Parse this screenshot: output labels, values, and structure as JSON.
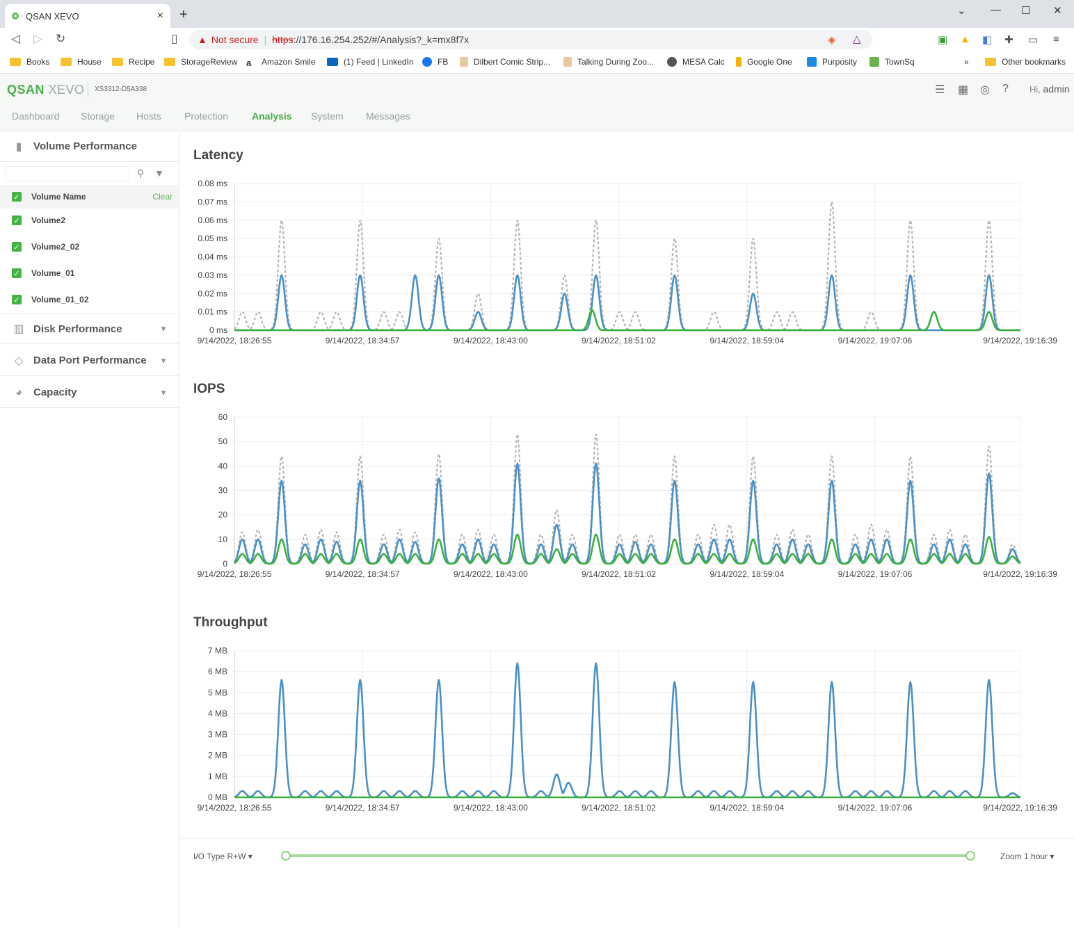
{
  "browser": {
    "tab_title": "QSAN XEVO",
    "tab_close": "×",
    "new_tab": "+",
    "not_secure": "Not secure",
    "url_protocol": "https",
    "url_rest": "://176.16.254.252/#/Analysis?_k=mx8f7x",
    "bookmarks": [
      {
        "label": "Books",
        "icon": "folder-icon"
      },
      {
        "label": "House",
        "icon": "folder-icon"
      },
      {
        "label": "Recipe",
        "icon": "folder-icon"
      },
      {
        "label": "StorageReview",
        "icon": "folder-icon"
      },
      {
        "label": "Amazon Smile",
        "icon": "amazon-icon"
      },
      {
        "label": "(1) Feed | LinkedIn",
        "icon": "linkedin-icon"
      },
      {
        "label": "FB",
        "icon": "facebook-icon"
      },
      {
        "label": "Dilbert Comic Strip...",
        "icon": "dilbert-icon"
      },
      {
        "label": "Talking During Zoo...",
        "icon": "dilbert-icon"
      },
      {
        "label": "MESA Calc",
        "icon": "globe-icon"
      },
      {
        "label": "Google One",
        "icon": "google-one-icon"
      },
      {
        "label": "Purposity",
        "icon": "purposity-icon"
      },
      {
        "label": "TownSq",
        "icon": "townsq-icon"
      }
    ],
    "more_bookmarks": "»",
    "other_bookmarks": "Other bookmarks"
  },
  "app": {
    "logo_main": "QSAN",
    "logo_sub": "XEVO",
    "model": "XS3312-D5A338",
    "greeting": "Hi,",
    "user": "admin",
    "nav": [
      "Dashboard",
      "Storage",
      "Hosts",
      "Protection",
      "Analysis",
      "System",
      "Messages"
    ],
    "active_nav": "Analysis"
  },
  "sidebar": {
    "volume_performance": "Volume Performance",
    "column_header": "Volume Name",
    "clear": "Clear",
    "volumes": [
      "Volume2",
      "Volume2_02",
      "Volume_01",
      "Volume_01_02"
    ],
    "sections": [
      "Disk Performance",
      "Data Port Performance",
      "Capacity"
    ]
  },
  "charts": {
    "latency_title": "Latency",
    "iops_title": "IOPS",
    "throughput_title": "Throughput",
    "x_ticks": [
      "9/14/2022, 18:26:55",
      "9/14/2022, 18:34:57",
      "9/14/2022, 18:43:00",
      "9/14/2022, 18:51:02",
      "9/14/2022, 18:59:04",
      "9/14/2022, 19:07:06",
      "9/14/2022, 19:16:39"
    ]
  },
  "colors": {
    "blue": "#4a90c8",
    "green": "#3cb03c",
    "gray": "#b5b5b5",
    "accent": "#4cae4c"
  },
  "chart_data": [
    {
      "type": "line",
      "title": "Latency",
      "y_ticks": [
        "0 ms",
        "0.01 ms",
        "0.02 ms",
        "0.03 ms",
        "0.04 ms",
        "0.05 ms",
        "0.06 ms",
        "0.07 ms",
        "0.08 ms"
      ],
      "ylim": [
        0,
        0.08
      ],
      "x_ticks": [
        "9/14/2022, 18:26:55",
        "9/14/2022, 18:34:57",
        "9/14/2022, 18:43:00",
        "9/14/2022, 18:51:02",
        "9/14/2022, 18:59:04",
        "9/14/2022, 19:07:06",
        "9/14/2022, 19:16:39"
      ],
      "grid": true,
      "series": [
        {
          "style": "dashed-gray",
          "peaks": [
            [
              0.01,
              0.01
            ],
            [
              0.03,
              0.01
            ],
            [
              0.06,
              0.06
            ],
            [
              0.11,
              0.01
            ],
            [
              0.13,
              0.01
            ],
            [
              0.16,
              0.06
            ],
            [
              0.19,
              0.01
            ],
            [
              0.21,
              0.01
            ],
            [
              0.23,
              0.03
            ],
            [
              0.26,
              0.05
            ],
            [
              0.31,
              0.02
            ],
            [
              0.36,
              0.06
            ],
            [
              0.42,
              0.03
            ],
            [
              0.46,
              0.06
            ],
            [
              0.49,
              0.01
            ],
            [
              0.51,
              0.01
            ],
            [
              0.56,
              0.05
            ],
            [
              0.61,
              0.01
            ],
            [
              0.66,
              0.05
            ],
            [
              0.69,
              0.01
            ],
            [
              0.71,
              0.01
            ],
            [
              0.76,
              0.07
            ],
            [
              0.81,
              0.01
            ],
            [
              0.86,
              0.06
            ],
            [
              0.89,
              0.01
            ],
            [
              0.96,
              0.06
            ]
          ]
        },
        {
          "style": "solid-blue",
          "peaks": [
            [
              0.06,
              0.03
            ],
            [
              0.16,
              0.03
            ],
            [
              0.23,
              0.03
            ],
            [
              0.26,
              0.03
            ],
            [
              0.31,
              0.01
            ],
            [
              0.36,
              0.03
            ],
            [
              0.42,
              0.02
            ],
            [
              0.46,
              0.03
            ],
            [
              0.56,
              0.03
            ],
            [
              0.66,
              0.02
            ],
            [
              0.76,
              0.03
            ],
            [
              0.86,
              0.03
            ],
            [
              0.96,
              0.03
            ]
          ]
        },
        {
          "style": "solid-green",
          "peaks": [
            [
              0.455,
              0.011
            ],
            [
              0.89,
              0.01
            ],
            [
              0.96,
              0.01
            ]
          ]
        }
      ]
    },
    {
      "type": "line",
      "title": "IOPS",
      "y_ticks": [
        "0",
        "10",
        "20",
        "30",
        "40",
        "50",
        "60"
      ],
      "ylim": [
        0,
        60
      ],
      "x_ticks": [
        "9/14/2022, 18:26:55",
        "9/14/2022, 18:34:57",
        "9/14/2022, 18:43:00",
        "9/14/2022, 18:51:02",
        "9/14/2022, 18:59:04",
        "9/14/2022, 19:07:06",
        "9/14/2022, 19:16:39"
      ],
      "grid": true,
      "series": [
        {
          "style": "dashed-gray",
          "peaks": [
            [
              0.01,
              13
            ],
            [
              0.03,
              14
            ],
            [
              0.06,
              44
            ],
            [
              0.09,
              12
            ],
            [
              0.11,
              14
            ],
            [
              0.13,
              13
            ],
            [
              0.16,
              44
            ],
            [
              0.19,
              12
            ],
            [
              0.21,
              14
            ],
            [
              0.23,
              13
            ],
            [
              0.26,
              45
            ],
            [
              0.29,
              12
            ],
            [
              0.31,
              14
            ],
            [
              0.33,
              12
            ],
            [
              0.36,
              53
            ],
            [
              0.39,
              12
            ],
            [
              0.41,
              22
            ],
            [
              0.43,
              12
            ],
            [
              0.46,
              53
            ],
            [
              0.49,
              12
            ],
            [
              0.51,
              12
            ],
            [
              0.53,
              12
            ],
            [
              0.56,
              44
            ],
            [
              0.59,
              12
            ],
            [
              0.61,
              16
            ],
            [
              0.63,
              16
            ],
            [
              0.66,
              44
            ],
            [
              0.69,
              12
            ],
            [
              0.71,
              14
            ],
            [
              0.73,
              12
            ],
            [
              0.76,
              44
            ],
            [
              0.79,
              12
            ],
            [
              0.81,
              16
            ],
            [
              0.83,
              14
            ],
            [
              0.86,
              44
            ],
            [
              0.89,
              12
            ],
            [
              0.91,
              14
            ],
            [
              0.93,
              12
            ],
            [
              0.96,
              48
            ],
            [
              0.99,
              8
            ]
          ]
        },
        {
          "style": "solid-blue",
          "peaks": [
            [
              0.01,
              10
            ],
            [
              0.03,
              10
            ],
            [
              0.06,
              34
            ],
            [
              0.09,
              8
            ],
            [
              0.11,
              10
            ],
            [
              0.13,
              9
            ],
            [
              0.16,
              34
            ],
            [
              0.19,
              8
            ],
            [
              0.21,
              10
            ],
            [
              0.23,
              9
            ],
            [
              0.26,
              35
            ],
            [
              0.29,
              8
            ],
            [
              0.31,
              10
            ],
            [
              0.33,
              8
            ],
            [
              0.36,
              41
            ],
            [
              0.39,
              8
            ],
            [
              0.41,
              16
            ],
            [
              0.43,
              8
            ],
            [
              0.46,
              41
            ],
            [
              0.49,
              8
            ],
            [
              0.51,
              9
            ],
            [
              0.53,
              8
            ],
            [
              0.56,
              34
            ],
            [
              0.59,
              8
            ],
            [
              0.61,
              10
            ],
            [
              0.63,
              10
            ],
            [
              0.66,
              34
            ],
            [
              0.69,
              8
            ],
            [
              0.71,
              10
            ],
            [
              0.73,
              8
            ],
            [
              0.76,
              34
            ],
            [
              0.79,
              8
            ],
            [
              0.81,
              10
            ],
            [
              0.83,
              10
            ],
            [
              0.86,
              34
            ],
            [
              0.89,
              8
            ],
            [
              0.91,
              10
            ],
            [
              0.93,
              8
            ],
            [
              0.96,
              37
            ],
            [
              0.99,
              6
            ]
          ]
        },
        {
          "style": "solid-green",
          "peaks": [
            [
              0.01,
              4
            ],
            [
              0.03,
              4
            ],
            [
              0.06,
              10
            ],
            [
              0.09,
              4
            ],
            [
              0.11,
              4
            ],
            [
              0.13,
              4
            ],
            [
              0.16,
              10
            ],
            [
              0.19,
              4
            ],
            [
              0.21,
              4
            ],
            [
              0.23,
              4
            ],
            [
              0.26,
              10
            ],
            [
              0.29,
              4
            ],
            [
              0.31,
              4
            ],
            [
              0.33,
              4
            ],
            [
              0.36,
              12
            ],
            [
              0.39,
              4
            ],
            [
              0.41,
              6
            ],
            [
              0.43,
              4
            ],
            [
              0.46,
              12
            ],
            [
              0.49,
              4
            ],
            [
              0.51,
              4
            ],
            [
              0.53,
              4
            ],
            [
              0.56,
              10
            ],
            [
              0.59,
              4
            ],
            [
              0.61,
              4
            ],
            [
              0.63,
              4
            ],
            [
              0.66,
              10
            ],
            [
              0.69,
              4
            ],
            [
              0.71,
              4
            ],
            [
              0.73,
              4
            ],
            [
              0.76,
              10
            ],
            [
              0.79,
              4
            ],
            [
              0.81,
              4
            ],
            [
              0.83,
              4
            ],
            [
              0.86,
              10
            ],
            [
              0.89,
              4
            ],
            [
              0.91,
              4
            ],
            [
              0.93,
              4
            ],
            [
              0.96,
              11
            ],
            [
              0.99,
              3
            ]
          ]
        }
      ]
    },
    {
      "type": "line",
      "title": "Throughput",
      "y_ticks": [
        "0 MB",
        "1 MB",
        "2 MB",
        "3 MB",
        "4 MB",
        "5 MB",
        "6 MB",
        "7 MB"
      ],
      "ylim": [
        0,
        7
      ],
      "x_ticks": [
        "9/14/2022, 18:26:55",
        "9/14/2022, 18:34:57",
        "9/14/2022, 18:43:00",
        "9/14/2022, 18:51:02",
        "9/14/2022, 18:59:04",
        "9/14/2022, 19:07:06",
        "9/14/2022, 19:16:39"
      ],
      "grid": true,
      "series": [
        {
          "style": "solid-blue",
          "peaks": [
            [
              0.01,
              0.3
            ],
            [
              0.03,
              0.3
            ],
            [
              0.06,
              5.6
            ],
            [
              0.09,
              0.3
            ],
            [
              0.11,
              0.3
            ],
            [
              0.13,
              0.3
            ],
            [
              0.16,
              5.6
            ],
            [
              0.19,
              0.3
            ],
            [
              0.21,
              0.3
            ],
            [
              0.23,
              0.3
            ],
            [
              0.26,
              5.6
            ],
            [
              0.29,
              0.3
            ],
            [
              0.31,
              0.3
            ],
            [
              0.33,
              0.3
            ],
            [
              0.36,
              6.4
            ],
            [
              0.39,
              0.3
            ],
            [
              0.41,
              1.1
            ],
            [
              0.425,
              0.7
            ],
            [
              0.46,
              6.4
            ],
            [
              0.49,
              0.3
            ],
            [
              0.51,
              0.3
            ],
            [
              0.53,
              0.3
            ],
            [
              0.56,
              5.5
            ],
            [
              0.59,
              0.3
            ],
            [
              0.61,
              0.3
            ],
            [
              0.63,
              0.3
            ],
            [
              0.66,
              5.5
            ],
            [
              0.69,
              0.3
            ],
            [
              0.71,
              0.3
            ],
            [
              0.73,
              0.3
            ],
            [
              0.76,
              5.5
            ],
            [
              0.79,
              0.3
            ],
            [
              0.81,
              0.3
            ],
            [
              0.83,
              0.3
            ],
            [
              0.86,
              5.5
            ],
            [
              0.89,
              0.3
            ],
            [
              0.91,
              0.3
            ],
            [
              0.93,
              0.3
            ],
            [
              0.96,
              5.6
            ],
            [
              0.99,
              0.2
            ]
          ]
        },
        {
          "style": "solid-green",
          "peaks": []
        }
      ]
    }
  ],
  "bottom": {
    "io_type": "I/O Type R+W",
    "zoom": "Zoom 1 hour",
    "slider_start": 0,
    "slider_end": 1
  }
}
